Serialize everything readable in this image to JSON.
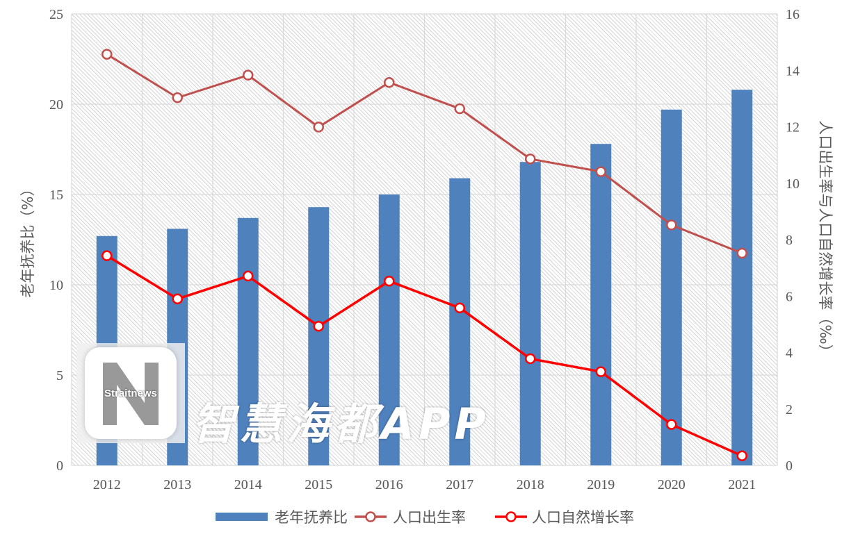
{
  "chart_data": {
    "type": "bar+line",
    "categories": [
      "2012",
      "2013",
      "2014",
      "2015",
      "2016",
      "2017",
      "2018",
      "2019",
      "2020",
      "2021"
    ],
    "series": [
      {
        "name": "老年抚养比",
        "type": "bar",
        "axis": "left",
        "color": "#4f81bd",
        "values": [
          12.7,
          13.1,
          13.7,
          14.3,
          15.0,
          15.9,
          16.8,
          17.8,
          19.7,
          20.8
        ]
      },
      {
        "name": "人口出生率",
        "type": "line",
        "axis": "right",
        "color": "#c0504d",
        "values": [
          14.57,
          13.03,
          13.83,
          11.99,
          13.57,
          12.64,
          10.86,
          10.41,
          8.52,
          7.52
        ]
      },
      {
        "name": "人口自然增长率",
        "type": "line",
        "axis": "right",
        "color": "#ff0000",
        "values": [
          7.43,
          5.9,
          6.71,
          4.93,
          6.53,
          5.58,
          3.78,
          3.32,
          1.45,
          0.34
        ]
      }
    ],
    "ylabel_left": "老年抚养比（%）",
    "ylabel_right": "人口出生率与人口自然增长率（‰）",
    "ylim_left": [
      0,
      25
    ],
    "yticks_left": [
      "0",
      "5",
      "10",
      "15",
      "20",
      "25"
    ],
    "ylim_right": [
      0,
      16
    ],
    "yticks_right": [
      "0",
      "2",
      "4",
      "6",
      "8",
      "10",
      "12",
      "14",
      "16"
    ],
    "grid": true,
    "legend": "bottom"
  },
  "watermark": {
    "logo": "Straitnews",
    "text": "智慧海都APP"
  }
}
